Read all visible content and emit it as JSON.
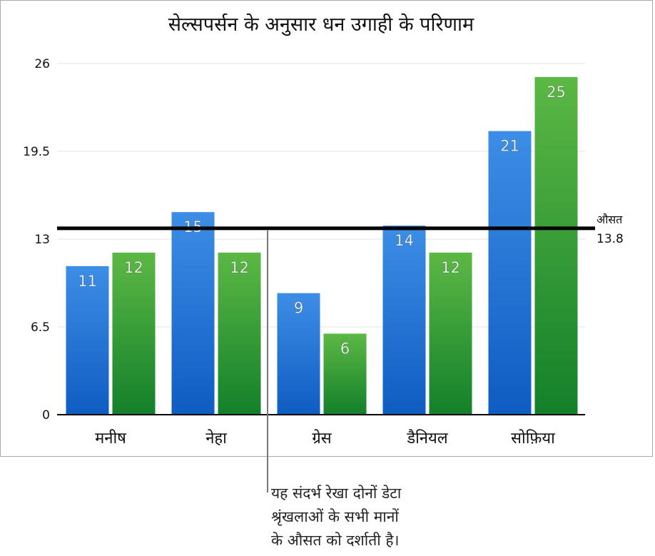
{
  "chart_data": {
    "type": "bar",
    "title": "सेल्सपर्सन के अनुसार धन उगाही के परिणाम",
    "categories": [
      "मनीष",
      "नेहा",
      "ग्रेस",
      "डैनियल",
      "सोफ़िया"
    ],
    "series": [
      {
        "color": "#3d8ee6",
        "color_dark": "#0f5cc2",
        "values": [
          11,
          15,
          9,
          14,
          21
        ]
      },
      {
        "color": "#5cb844",
        "color_dark": "#13802a",
        "values": [
          12,
          12,
          6,
          12,
          25
        ]
      }
    ],
    "ylim": [
      0,
      26
    ],
    "yticks": [
      "0",
      "6.5",
      "13",
      "19.5",
      "26"
    ],
    "grid": true,
    "reference_line": {
      "value": 13.8,
      "label": "औसत",
      "value_label": "13.8"
    }
  },
  "callout": {
    "text": "यह संदर्भ रेखा दोनों डेटा\nश्रृंखलाओं के सभी मानों\nके औसत को दर्शाती है।"
  }
}
